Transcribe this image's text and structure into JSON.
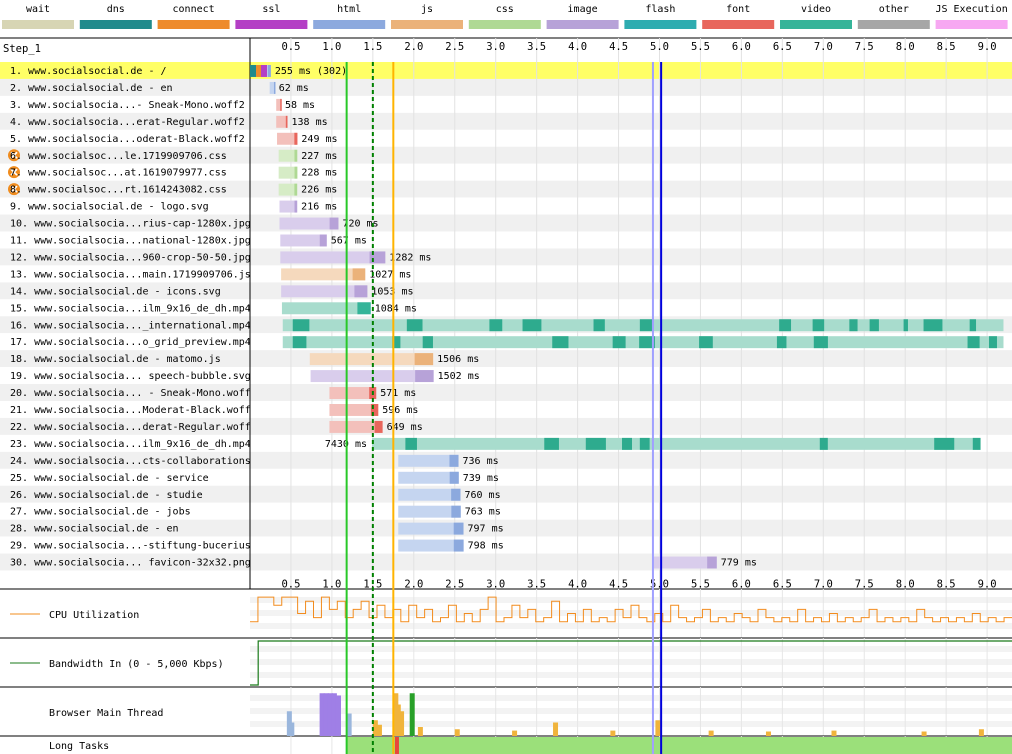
{
  "chart_data": {
    "type": "waterfall",
    "step_label": "Step_1",
    "legend": [
      {
        "name": "wait",
        "color": "#d7d5b4"
      },
      {
        "name": "dns",
        "color": "#218a8c"
      },
      {
        "name": "connect",
        "color": "#ee8b2c"
      },
      {
        "name": "ssl",
        "color": "#b43fc5"
      },
      {
        "name": "html",
        "color": "#8ca9de"
      },
      {
        "name": "js",
        "color": "#ebb27a"
      },
      {
        "name": "css",
        "color": "#afd994"
      },
      {
        "name": "image",
        "color": "#b7a2d8"
      },
      {
        "name": "flash",
        "color": "#2eacb0"
      },
      {
        "name": "font",
        "color": "#e8665c"
      },
      {
        "name": "video",
        "color": "#35b499"
      },
      {
        "name": "other",
        "color": "#a6a6a6"
      },
      {
        "name": "JS Execution",
        "color": "#f7a8f2"
      }
    ],
    "x_ticks": [
      0.5,
      1.0,
      1.5,
      2.0,
      2.5,
      3.0,
      3.5,
      4.0,
      4.5,
      5.0,
      5.5,
      6.0,
      6.5,
      7.0,
      7.5,
      8.0,
      8.5,
      9.0
    ],
    "x_tick_labels": [
      "0.5",
      "1.0",
      "1.5",
      "2.0",
      "2.5",
      "3.0",
      "3.5",
      "4.0",
      "4.5",
      "5.0",
      "5.5",
      "6.0",
      "6.5",
      "7.0",
      "7.5",
      "8.0",
      "8.5",
      "9.0"
    ],
    "xlim": [
      0,
      9.2
    ],
    "markers": [
      {
        "time": 1.18,
        "color": "#28c828",
        "style": "solid"
      },
      {
        "time": 1.5,
        "color": "#008000",
        "style": "dashed"
      },
      {
        "time": 1.75,
        "color": "#ffb400",
        "style": "solid"
      },
      {
        "time": 4.92,
        "color": "#a0a0ff",
        "style": "solid"
      },
      {
        "time": 5.02,
        "color": "#0000dc",
        "style": "solid"
      }
    ],
    "requests": [
      {
        "label": "1. www.socialsocial.de - /",
        "start": 0.0,
        "dur": 0.255,
        "type": "html",
        "text": "255 ms (302)",
        "highlight": true,
        "warn": false
      },
      {
        "label": "2. www.socialsocial.de - en",
        "start": 0.24,
        "dur": 0.062,
        "type": "html",
        "text": "62 ms",
        "highlight": false,
        "warn": false
      },
      {
        "label": "3. www.socialsocia...- Sneak-Mono.woff2",
        "start": 0.32,
        "dur": 0.058,
        "type": "font",
        "text": "58 ms",
        "highlight": false,
        "warn": false
      },
      {
        "label": "4. www.socialsocia...erat-Regular.woff2",
        "start": 0.32,
        "dur": 0.138,
        "type": "font",
        "text": "138 ms",
        "highlight": false,
        "warn": false
      },
      {
        "label": "5. www.socialsocia...oderat-Black.woff2",
        "start": 0.33,
        "dur": 0.249,
        "type": "font",
        "text": "249 ms",
        "highlight": false,
        "warn": false
      },
      {
        "label": "6. www.socialsoc...le.1719909706.css",
        "start": 0.35,
        "dur": 0.227,
        "type": "css",
        "text": "227 ms",
        "highlight": false,
        "warn": true
      },
      {
        "label": "7. www.socialsoc...at.1619079977.css",
        "start": 0.35,
        "dur": 0.228,
        "type": "css",
        "text": "228 ms",
        "highlight": false,
        "warn": true
      },
      {
        "label": "8. www.socialsoc...rt.1614243082.css",
        "start": 0.35,
        "dur": 0.226,
        "type": "css",
        "text": "226 ms",
        "highlight": false,
        "warn": true
      },
      {
        "label": "9. www.socialsocial.de - logo.svg",
        "start": 0.36,
        "dur": 0.216,
        "type": "image",
        "text": "216 ms",
        "highlight": false,
        "warn": false
      },
      {
        "label": "10. www.socialsocia...rius-cap-1280x.jpg",
        "start": 0.36,
        "dur": 0.72,
        "type": "image",
        "text": "720 ms",
        "highlight": false,
        "warn": false
      },
      {
        "label": "11. www.socialsocia...national-1280x.jpg",
        "start": 0.37,
        "dur": 0.567,
        "type": "image",
        "text": "567 ms",
        "highlight": false,
        "warn": false
      },
      {
        "label": "12. www.socialsocia...960-crop-50-50.jpg",
        "start": 0.37,
        "dur": 1.282,
        "type": "image",
        "text": "1282 ms",
        "highlight": false,
        "warn": false
      },
      {
        "label": "13. www.socialsocia...main.1719909706.js",
        "start": 0.38,
        "dur": 1.027,
        "type": "js",
        "text": "1027 ms",
        "highlight": false,
        "warn": false
      },
      {
        "label": "14. www.socialsocial.de - icons.svg",
        "start": 0.38,
        "dur": 1.053,
        "type": "image",
        "text": "1053 ms",
        "highlight": false,
        "warn": false
      },
      {
        "label": "15. www.socialsocia...ilm_9x16_de_dh.mp4",
        "start": 0.39,
        "dur": 1.084,
        "type": "video",
        "text": "1084 ms",
        "highlight": false,
        "warn": false
      },
      {
        "label": "16. www.socialsocia..._international.mp4",
        "start": 0.4,
        "dur": 8.8,
        "type": "video",
        "text": "",
        "highlight": false,
        "warn": false
      },
      {
        "label": "17. www.socialsocia...o_grid_preview.mp4",
        "start": 0.4,
        "dur": 8.8,
        "type": "video",
        "text": "",
        "highlight": false,
        "warn": false
      },
      {
        "label": "18. www.socialsocial.de - matomo.js",
        "start": 0.73,
        "dur": 1.506,
        "type": "js",
        "text": "1506 ms",
        "highlight": false,
        "warn": false
      },
      {
        "label": "19. www.socialsocia... speech-bubble.svg",
        "start": 0.74,
        "dur": 1.502,
        "type": "image",
        "text": "1502 ms",
        "highlight": false,
        "warn": false
      },
      {
        "label": "20. www.socialsocia... - Sneak-Mono.woff",
        "start": 0.97,
        "dur": 0.571,
        "type": "font",
        "text": "571 ms",
        "highlight": false,
        "warn": false
      },
      {
        "label": "21. www.socialsocia...Moderat-Black.woff",
        "start": 0.97,
        "dur": 0.596,
        "type": "font",
        "text": "596 ms",
        "highlight": false,
        "warn": false
      },
      {
        "label": "22. www.socialsocia...derat-Regular.woff",
        "start": 0.97,
        "dur": 0.649,
        "type": "font",
        "text": "649 ms",
        "highlight": false,
        "warn": false
      },
      {
        "label": "23. www.socialsocia...ilm_9x16_de_dh.mp4",
        "start": 1.49,
        "dur": 7.43,
        "type": "video",
        "text": "7430 ms",
        "highlight": false,
        "warn": false,
        "text_left": true
      },
      {
        "label": "24. www.socialsocia...cts-collaborations",
        "start": 1.81,
        "dur": 0.736,
        "type": "html",
        "text": "736 ms",
        "highlight": false,
        "warn": false
      },
      {
        "label": "25. www.socialsocial.de - service",
        "start": 1.81,
        "dur": 0.739,
        "type": "html",
        "text": "739 ms",
        "highlight": false,
        "warn": false
      },
      {
        "label": "26. www.socialsocial.de - studie",
        "start": 1.81,
        "dur": 0.76,
        "type": "html",
        "text": "760 ms",
        "highlight": false,
        "warn": false
      },
      {
        "label": "27. www.socialsocial.de - jobs",
        "start": 1.81,
        "dur": 0.763,
        "type": "html",
        "text": "763 ms",
        "highlight": false,
        "warn": false
      },
      {
        "label": "28. www.socialsocial.de - en",
        "start": 1.81,
        "dur": 0.797,
        "type": "html",
        "text": "797 ms",
        "highlight": false,
        "warn": false
      },
      {
        "label": "29. www.socialsocia...-stiftung-bucerius",
        "start": 1.81,
        "dur": 0.798,
        "type": "html",
        "text": "798 ms",
        "highlight": false,
        "warn": false
      },
      {
        "label": "30. www.socialsocia... favicon-32x32.png",
        "start": 4.92,
        "dur": 0.779,
        "type": "image",
        "text": "779 ms",
        "highlight": false,
        "warn": false
      }
    ],
    "cpu": {
      "label": "CPU Utilization",
      "color": "#f28c1e",
      "values": [
        30,
        90,
        90,
        70,
        90,
        90,
        50,
        80,
        40,
        90,
        60,
        80,
        40,
        60,
        80,
        40,
        70,
        40,
        60,
        30,
        70,
        40,
        60,
        30,
        40,
        70,
        30,
        50,
        30,
        60,
        90,
        30,
        40,
        70,
        40,
        60,
        30,
        40,
        80,
        30,
        50,
        30,
        60,
        30,
        40,
        30,
        60,
        40,
        70,
        40,
        30,
        50,
        30,
        70,
        40,
        30,
        40,
        60,
        30,
        40,
        30,
        50,
        40,
        30,
        60,
        40,
        30,
        40,
        30,
        60,
        30,
        40,
        30,
        50,
        30,
        40,
        30,
        40,
        60,
        30,
        40,
        30,
        40,
        30,
        60,
        40,
        30,
        40,
        30,
        40,
        30,
        50,
        30,
        40,
        30,
        40
      ]
    },
    "bandwidth": {
      "label": "Bandwidth In (0 - 5,000 Kbps)",
      "color": "#1a7a1a",
      "start_time": 0.1
    },
    "main_thread": {
      "label": "Browser Main Thread",
      "spikes": [
        {
          "t": 0.45,
          "h": 0.55,
          "c": "#9ab6dc"
        },
        {
          "t": 0.48,
          "h": 0.3,
          "c": "#9ab6dc"
        },
        {
          "t": 0.85,
          "h": 0.95,
          "c": "#9f7fe6"
        },
        {
          "t": 0.9,
          "h": 0.95,
          "c": "#9f7fe6"
        },
        {
          "t": 0.95,
          "h": 0.95,
          "c": "#9f7fe6"
        },
        {
          "t": 1.0,
          "h": 0.95,
          "c": "#9f7fe6"
        },
        {
          "t": 1.05,
          "h": 0.9,
          "c": "#9f7fe6"
        },
        {
          "t": 1.18,
          "h": 0.5,
          "c": "#9ab6dc"
        },
        {
          "t": 1.5,
          "h": 0.35,
          "c": "#f0b43c"
        },
        {
          "t": 1.55,
          "h": 0.25,
          "c": "#f0b43c"
        },
        {
          "t": 1.75,
          "h": 0.95,
          "c": "#f0b43c"
        },
        {
          "t": 1.78,
          "h": 0.7,
          "c": "#f0b43c"
        },
        {
          "t": 1.82,
          "h": 0.55,
          "c": "#f0b43c"
        },
        {
          "t": 1.95,
          "h": 0.95,
          "c": "#28a028"
        },
        {
          "t": 2.05,
          "h": 0.2,
          "c": "#f0b43c"
        },
        {
          "t": 2.5,
          "h": 0.15,
          "c": "#f0b43c"
        },
        {
          "t": 3.2,
          "h": 0.12,
          "c": "#f0b43c"
        },
        {
          "t": 3.7,
          "h": 0.3,
          "c": "#f0b43c"
        },
        {
          "t": 4.4,
          "h": 0.12,
          "c": "#f0b43c"
        },
        {
          "t": 4.95,
          "h": 0.35,
          "c": "#f0b43c"
        },
        {
          "t": 5.6,
          "h": 0.12,
          "c": "#f0b43c"
        },
        {
          "t": 6.3,
          "h": 0.1,
          "c": "#f0b43c"
        },
        {
          "t": 7.1,
          "h": 0.12,
          "c": "#f0b43c"
        },
        {
          "t": 8.2,
          "h": 0.1,
          "c": "#f0b43c"
        },
        {
          "t": 8.9,
          "h": 0.15,
          "c": "#f0b43c"
        }
      ]
    },
    "long_tasks": {
      "label": "Long Tasks",
      "green_from": 1.18,
      "green_color": "#9be07a",
      "red_at": 1.77,
      "red_color": "#e8463c"
    }
  }
}
